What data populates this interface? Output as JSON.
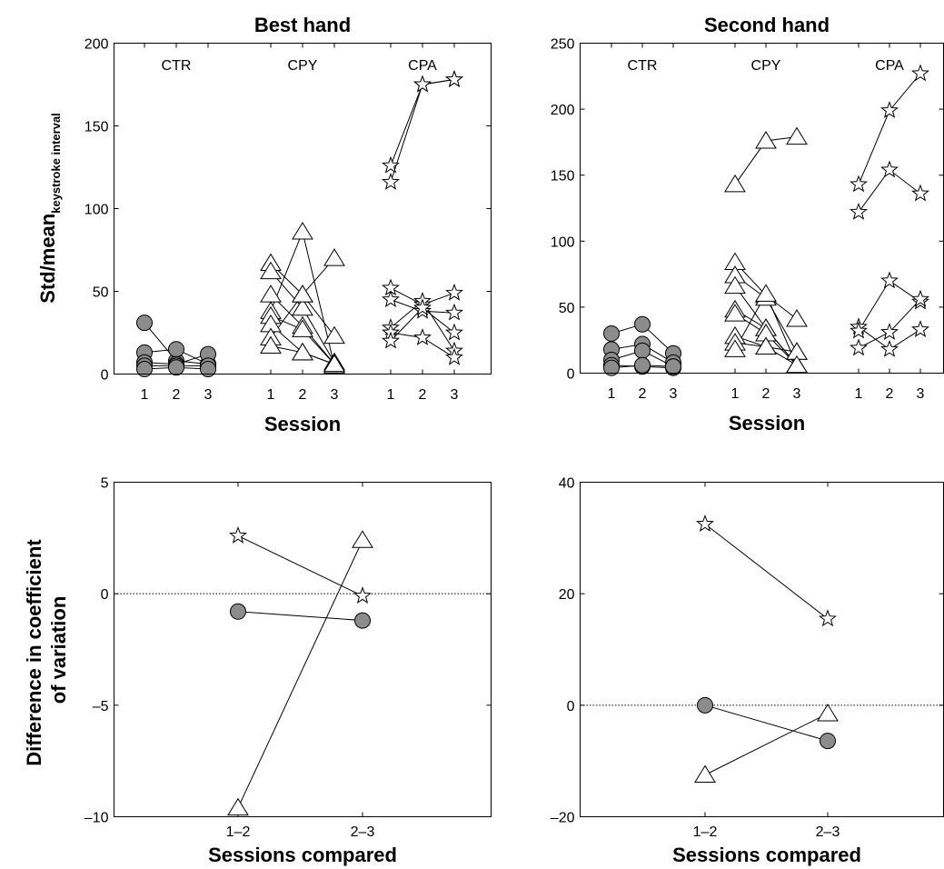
{
  "chart_data": [
    {
      "id": "best-session",
      "type": "scatter",
      "title": "Best hand",
      "xlabel": "Session",
      "ylabel": "Std/mean",
      "ylabel_sub": "keystroke interval",
      "ylim": [
        0,
        200
      ],
      "yticks": [
        0,
        50,
        100,
        150,
        200
      ],
      "xtick_labels": [
        "1",
        "2",
        "3"
      ],
      "group_labels": [
        "CTR",
        "CPY",
        "CPA"
      ],
      "grid": false,
      "groups": [
        {
          "label": "CTR",
          "marker": "circle",
          "lines": [
            [
              31,
              8,
              6
            ],
            [
              13,
              15,
              6
            ],
            [
              7,
              6,
              12
            ],
            [
              5,
              5,
              5
            ],
            [
              3,
              4,
              3
            ]
          ]
        },
        {
          "label": "CPY",
          "marker": "triangle",
          "lines": [
            [
              67,
              48,
              23
            ],
            [
              62,
              40,
              7
            ],
            [
              48,
              29,
              6
            ],
            [
              38,
              86,
              5
            ],
            [
              35,
              27,
              6
            ],
            [
              30,
              13,
              6
            ],
            [
              22,
              48,
              70
            ],
            [
              17,
              13,
              6
            ]
          ]
        },
        {
          "label": "CPA",
          "marker": "star",
          "lines": [
            [
              126,
              175,
              178
            ],
            [
              116,
              175,
              178
            ],
            [
              52,
              42,
              49
            ],
            [
              45,
              38,
              37
            ],
            [
              28,
              44,
              14
            ],
            [
              25,
              22,
              10
            ],
            [
              20,
              40,
              25
            ]
          ]
        }
      ]
    },
    {
      "id": "second-session",
      "type": "scatter",
      "title": "Second hand",
      "xlabel": "Session",
      "ylim": [
        0,
        250
      ],
      "yticks": [
        0,
        50,
        100,
        150,
        200,
        250
      ],
      "xtick_labels": [
        "1",
        "2",
        "3"
      ],
      "group_labels": [
        "CTR",
        "CPY",
        "CPA"
      ],
      "grid": false,
      "groups": [
        {
          "label": "CTR",
          "marker": "circle",
          "lines": [
            [
              30,
              37,
              15
            ],
            [
              18,
              22,
              8
            ],
            [
              10,
              17,
              5
            ],
            [
              6,
              5,
              4
            ],
            [
              4,
              6,
              5
            ]
          ]
        },
        {
          "label": "CPY",
          "marker": "triangle",
          "lines": [
            [
              143,
              176,
              179
            ],
            [
              84,
              59,
              41
            ],
            [
              74,
              57,
              16
            ],
            [
              66,
              34,
              6
            ],
            [
              48,
              34,
              6
            ],
            [
              45,
              30,
              6
            ],
            [
              28,
              20,
              6
            ],
            [
              23,
              20,
              16
            ],
            [
              18,
              60,
              6
            ]
          ]
        },
        {
          "label": "CPA",
          "marker": "star",
          "lines": [
            [
              143,
              199,
              227
            ],
            [
              122,
              154,
              136
            ],
            [
              35,
              18,
              33
            ],
            [
              32,
              70,
              54
            ],
            [
              19,
              31,
              56
            ]
          ]
        }
      ]
    },
    {
      "id": "best-diff",
      "type": "line",
      "xlabel": "Sessions compared",
      "ylabel": "Difference in coefficient of variation",
      "ylabel_lines": [
        "Difference in coefficient",
        "of variation"
      ],
      "categories": [
        "1–2",
        "2–3"
      ],
      "ylim": [
        -10,
        5
      ],
      "yticks": [
        -10,
        -5,
        0,
        5
      ],
      "reference_line": 0,
      "grid": false,
      "series": [
        {
          "marker": "star",
          "values": [
            2.6,
            -0.1
          ]
        },
        {
          "marker": "circle",
          "values": [
            -0.8,
            -1.2
          ]
        },
        {
          "marker": "triangle",
          "values": [
            -9.6,
            2.4
          ]
        }
      ]
    },
    {
      "id": "second-diff",
      "type": "line",
      "xlabel": "Sessions compared",
      "categories": [
        "1–2",
        "2–3"
      ],
      "ylim": [
        -20,
        40
      ],
      "yticks": [
        -20,
        0,
        20,
        40
      ],
      "reference_line": 0,
      "grid": false,
      "series": [
        {
          "marker": "star",
          "values": [
            32.5,
            15.5
          ]
        },
        {
          "marker": "circle",
          "values": [
            0,
            -6.4
          ]
        },
        {
          "marker": "triangle",
          "values": [
            -12.5,
            -1.5
          ]
        }
      ]
    }
  ]
}
